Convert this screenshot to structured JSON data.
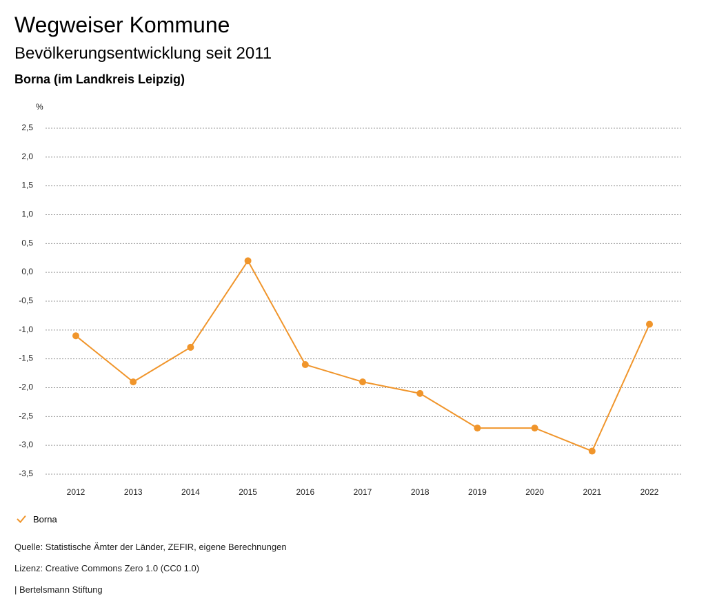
{
  "header": {
    "title": "Wegweiser Kommune",
    "subtitle": "Bevölkerungsentwicklung seit 2011",
    "place": "Borna (im Landkreis Leipzig)"
  },
  "chart_data": {
    "type": "line",
    "unit_label": "%",
    "x": [
      "2012",
      "2013",
      "2014",
      "2015",
      "2016",
      "2017",
      "2018",
      "2019",
      "2020",
      "2021",
      "2022"
    ],
    "series": [
      {
        "name": "Borna",
        "color": "#f0952b",
        "values": [
          -1.1,
          -1.9,
          -1.3,
          0.2,
          -1.6,
          -1.9,
          -2.1,
          -2.7,
          -2.7,
          -3.1,
          -0.9
        ]
      }
    ],
    "y_ticks": [
      2.5,
      2.0,
      1.5,
      1.0,
      0.5,
      0.0,
      -0.5,
      -1.0,
      -1.5,
      -2.0,
      -2.5,
      -3.0,
      -3.5
    ],
    "y_tick_labels": [
      "2,5",
      "2,0",
      "1,5",
      "1,0",
      "0,5",
      "0,0",
      "-0,5",
      "-1,0",
      "-1,5",
      "-2,0",
      "-2,5",
      "-3,0",
      "-3,5"
    ],
    "ylim": [
      -3.5,
      2.5
    ],
    "grid": true,
    "legend_position": "bottom-left"
  },
  "legend": {
    "label": "Borna"
  },
  "footer": {
    "source": "Quelle: Statistische Ämter der Länder, ZEFIR, eigene Berechnungen",
    "license": "Lizenz: Creative Commons Zero 1.0 (CC0 1.0)",
    "publisher": "| Bertelsmann Stiftung"
  }
}
